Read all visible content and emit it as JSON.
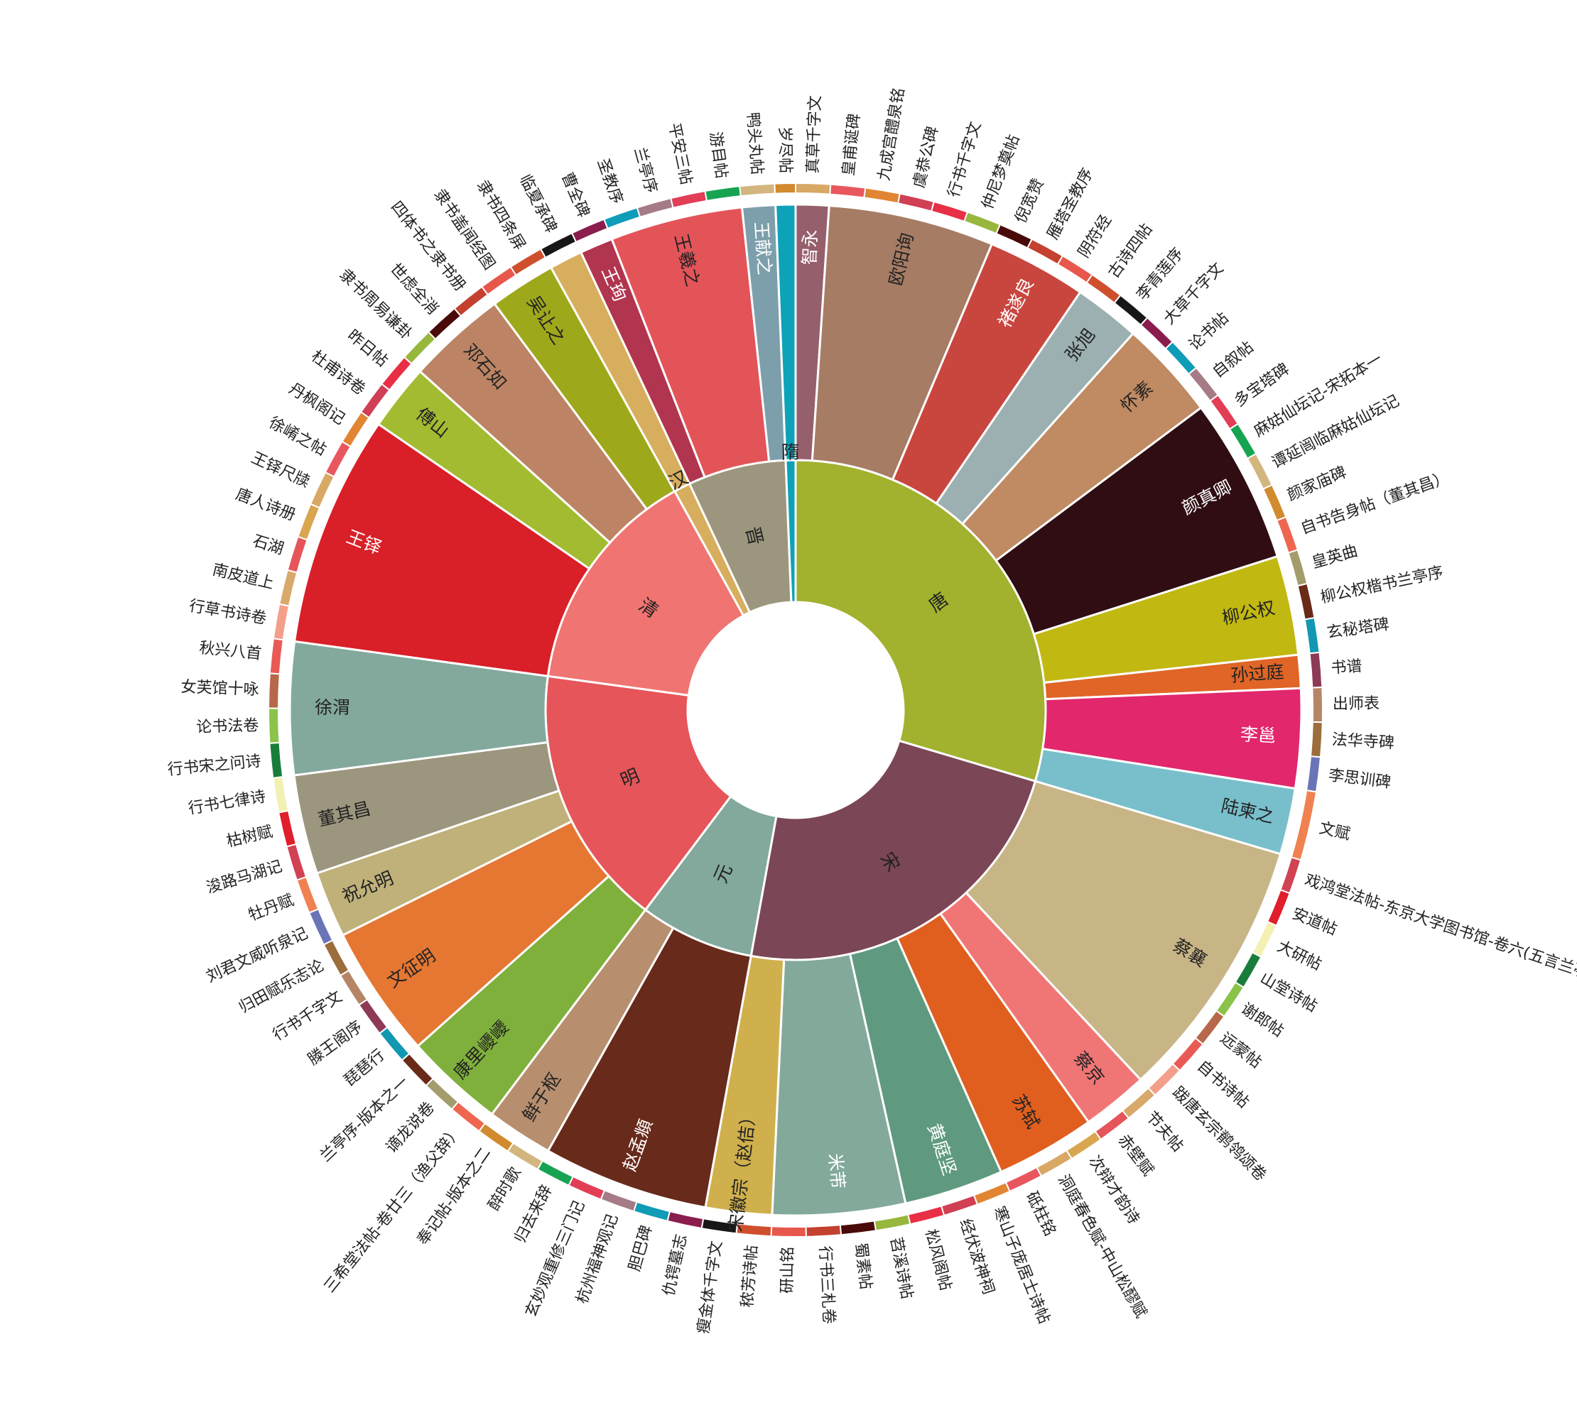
{
  "chart_data": {
    "type": "sunburst",
    "root": {
      "children": [
        {
          "name": "唐",
          "color": "#a2b12e",
          "children": [
            {
              "name": "智永",
              "color": "#965f6c",
              "children": [
                {
                  "name": "真草千字文",
                  "value": 1
                }
              ]
            },
            {
              "name": "欧阳询",
              "color": "#a67c64",
              "children": [
                {
                  "name": "皇甫诞碑",
                  "value": 1
                },
                {
                  "name": "九成宫醴泉铭",
                  "value": 1
                },
                {
                  "name": "虞恭公碑",
                  "value": 1
                },
                {
                  "name": "行书千字文",
                  "value": 1
                },
                {
                  "name": "仲尼梦奠帖",
                  "value": 1
                }
              ]
            },
            {
              "name": "褚遂良",
              "color": "#c9463f",
              "children": [
                {
                  "name": "倪宽赞",
                  "value": 1
                },
                {
                  "name": "雁塔圣教序",
                  "value": 1
                },
                {
                  "name": "阴符经",
                  "value": 1
                }
              ]
            },
            {
              "name": "张旭",
              "color": "#9cb0b2",
              "children": [
                {
                  "name": "古诗四帖",
                  "value": 1
                },
                {
                  "name": "李青莲序",
                  "value": 1
                }
              ]
            },
            {
              "name": "怀素",
              "color": "#c08a62",
              "children": [
                {
                  "name": "大草千字文",
                  "value": 1
                },
                {
                  "name": "论书帖",
                  "value": 1
                },
                {
                  "name": "自叙帖",
                  "value": 1
                }
              ]
            },
            {
              "name": "颜真卿",
              "color": "#2f0d12",
              "children": [
                {
                  "name": "多宝塔碑",
                  "value": 1
                },
                {
                  "name": "麻姑仙坛记-宋拓本一",
                  "value": 1
                },
                {
                  "name": "谭延闿临麻姑仙坛记",
                  "value": 1
                },
                {
                  "name": "颜家庙碑",
                  "value": 1
                },
                {
                  "name": "自书告身帖（董其昌）",
                  "value": 1
                }
              ]
            },
            {
              "name": "柳公权",
              "color": "#c1b812",
              "children": [
                {
                  "name": "皇英曲",
                  "value": 1
                },
                {
                  "name": "柳公权楷书兰亭序",
                  "value": 1
                },
                {
                  "name": "玄秘塔碑",
                  "value": 1
                }
              ]
            },
            {
              "name": "孙过庭",
              "color": "#e06526",
              "children": [
                {
                  "name": "书谱",
                  "value": 1
                }
              ]
            },
            {
              "name": "李邕",
              "color": "#e2276d",
              "children": [
                {
                  "name": "出师表",
                  "value": 1
                },
                {
                  "name": "法华寺碑",
                  "value": 1
                },
                {
                  "name": "李思训碑",
                  "value": 1
                }
              ]
            },
            {
              "name": "陆柬之",
              "color": "#78bfcb",
              "children": [
                {
                  "name": "文赋",
                  "value": 2
                }
              ]
            }
          ]
        },
        {
          "name": "宋",
          "color": "#7b4655",
          "children": [
            {
              "name": "蔡襄",
              "color": "#c8b586",
              "children": [
                {
                  "name": "戏鸿堂法帖-东京大学图书馆-卷六(五言兰亭诗)",
                  "value": 1
                },
                {
                  "name": "安道帖",
                  "value": 1
                },
                {
                  "name": "大研帖",
                  "value": 1
                },
                {
                  "name": "山堂诗帖",
                  "value": 1
                },
                {
                  "name": "谢郎帖",
                  "value": 1
                },
                {
                  "name": "远蒙帖",
                  "value": 1
                },
                {
                  "name": "自书诗帖",
                  "value": 1
                },
                {
                  "name": "跋唐玄宗鹡鸰颂卷",
                  "value": 1
                }
              ]
            },
            {
              "name": "蔡京",
              "color": "#f07675",
              "children": [
                {
                  "name": "节夫帖",
                  "value": 1
                },
                {
                  "name": "赤壁赋",
                  "value": 1
                }
              ]
            },
            {
              "name": "苏轼",
              "color": "#e05f1f",
              "children": [
                {
                  "name": "次辩才韵诗",
                  "value": 1
                },
                {
                  "name": "洞庭春色赋-中山松醪赋",
                  "value": 1
                },
                {
                  "name": "砥柱铭",
                  "value": 1
                }
              ]
            },
            {
              "name": "黄庭坚",
              "color": "#5f9a80",
              "children": [
                {
                  "name": "寒山子庞居士诗帖",
                  "value": 1
                },
                {
                  "name": "经伏波神祠",
                  "value": 1
                },
                {
                  "name": "松风阁帖",
                  "value": 1
                }
              ]
            },
            {
              "name": "米芾",
              "color": "#83a99b",
              "children": [
                {
                  "name": "苕溪诗帖",
                  "value": 1
                },
                {
                  "name": "蜀素帖",
                  "value": 1
                },
                {
                  "name": "行书三札卷",
                  "value": 1
                },
                {
                  "name": "研山铭",
                  "value": 1
                }
              ]
            },
            {
              "name": "宋徽宗（赵佶）",
              "color": "#d0b04c",
              "children": [
                {
                  "name": "秾芳诗帖",
                  "value": 1
                },
                {
                  "name": "瘦金体千字文",
                  "value": 1
                }
              ]
            }
          ]
        },
        {
          "name": "元",
          "color": "#82a99c",
          "children": [
            {
              "name": "赵孟頫",
              "color": "#682a1a",
              "children": [
                {
                  "name": "仇锷墓志",
                  "value": 1
                },
                {
                  "name": "胆巴碑",
                  "value": 1
                },
                {
                  "name": "杭州福神观记",
                  "value": 1
                },
                {
                  "name": "玄妙观重修三门记",
                  "value": 1
                },
                {
                  "name": "归去来辞",
                  "value": 1
                }
              ]
            },
            {
              "name": "鲜于枢",
              "color": "#b78f6f",
              "children": [
                {
                  "name": "醉时歌",
                  "value": 1
                },
                {
                  "name": "奉记帖-版本之二",
                  "value": 1
                }
              ]
            }
          ]
        },
        {
          "name": "明",
          "color": "#e5555a",
          "children": [
            {
              "name": "康里巎巎",
              "color": "#7fb03c",
              "children": [
                {
                  "name": "三希堂法帖-卷廿三（渔父辞）",
                  "value": 1
                },
                {
                  "name": "谪龙说卷",
                  "value": 1
                },
                {
                  "name": "兰亭序-版本之一",
                  "value": 1
                }
              ]
            },
            {
              "name": "文征明",
              "color": "#e57732",
              "children": [
                {
                  "name": "琵琶行",
                  "value": 1
                },
                {
                  "name": "滕王阁序",
                  "value": 1
                },
                {
                  "name": "行书千字文",
                  "value": 1
                },
                {
                  "name": "归田赋乐志论",
                  "value": 1
                }
              ]
            },
            {
              "name": "祝允明",
              "color": "#bfb179",
              "children": [
                {
                  "name": "刘君文威听泉记",
                  "value": 1
                },
                {
                  "name": "牡丹赋",
                  "value": 1
                }
              ]
            },
            {
              "name": "董其昌",
              "color": "#9c967e",
              "children": [
                {
                  "name": "浚路马湖记",
                  "value": 1
                },
                {
                  "name": "枯树赋",
                  "value": 1
                },
                {
                  "name": "行书七律诗",
                  "value": 1
                }
              ]
            },
            {
              "name": "徐渭",
              "color": "#83a99c",
              "children": [
                {
                  "name": "行书宋之问诗",
                  "value": 1
                },
                {
                  "name": "论书法卷",
                  "value": 1
                },
                {
                  "name": "女芙馆十咏",
                  "value": 1
                },
                {
                  "name": "秋兴八首",
                  "value": 1
                }
              ]
            }
          ]
        },
        {
          "name": "清",
          "color": "#f07471",
          "children": [
            {
              "name": "王铎",
              "color": "#d91f28",
              "children": [
                {
                  "name": "行草书诗卷",
                  "value": 1
                },
                {
                  "name": "南皮道上",
                  "value": 1
                },
                {
                  "name": "石湖",
                  "value": 1
                },
                {
                  "name": "唐人诗册",
                  "value": 1
                },
                {
                  "name": "王铎尺牍",
                  "value": 1
                },
                {
                  "name": "徐崤之帖",
                  "value": 1
                },
                {
                  "name": "丹枫阁记",
                  "value": 1
                }
              ]
            },
            {
              "name": "傅山",
              "color": "#a3bb31",
              "children": [
                {
                  "name": "杜甫诗卷",
                  "value": 1
                },
                {
                  "name": "昨日帖",
                  "value": 1
                }
              ]
            },
            {
              "name": "邓石如",
              "color": "#bc8464",
              "children": [
                {
                  "name": "隶书周易谦卦",
                  "value": 1
                },
                {
                  "name": "世虑全消",
                  "value": 1
                },
                {
                  "name": "四体书之隶书册",
                  "value": 1
                }
              ]
            },
            {
              "name": "吴让之",
              "color": "#9ea81b",
              "children": [
                {
                  "name": "隶书盖闻经图",
                  "value": 1
                },
                {
                  "name": "隶书四条屏",
                  "value": 1
                }
              ]
            }
          ]
        },
        {
          "name": "汉",
          "color": "#d7ae5e",
          "children": [
            {
              "name": "",
              "color": "#d7ae5e",
              "children": [
                {
                  "name": "临夏承碑",
                  "value": 1
                }
              ]
            }
          ]
        },
        {
          "name": "晋",
          "color": "#9c967e",
          "children": [
            {
              "name": "王珣",
              "color": "#b1354e",
              "children": [
                {
                  "name": "曹全碑",
                  "value": 1
                }
              ]
            },
            {
              "name": "王羲之",
              "color": "#e35459",
              "children": [
                {
                  "name": "圣教序",
                  "value": 1
                },
                {
                  "name": "兰亭序",
                  "value": 1
                },
                {
                  "name": "平安三帖",
                  "value": 1
                },
                {
                  "name": "游目帖",
                  "value": 1
                }
              ]
            },
            {
              "name": "王献之",
              "color": "#7d9fac",
              "children": [
                {
                  "name": "鸭头丸帖",
                  "value": 1
                }
              ]
            }
          ]
        },
        {
          "name": "隋",
          "color": "#0ea2b9",
          "children": [
            {
              "name": "",
              "color": "#0ea2b9",
              "children": [
                {
                  "name": "岁尽帖",
                  "value": 0.6
                }
              ]
            }
          ]
        }
      ]
    }
  }
}
